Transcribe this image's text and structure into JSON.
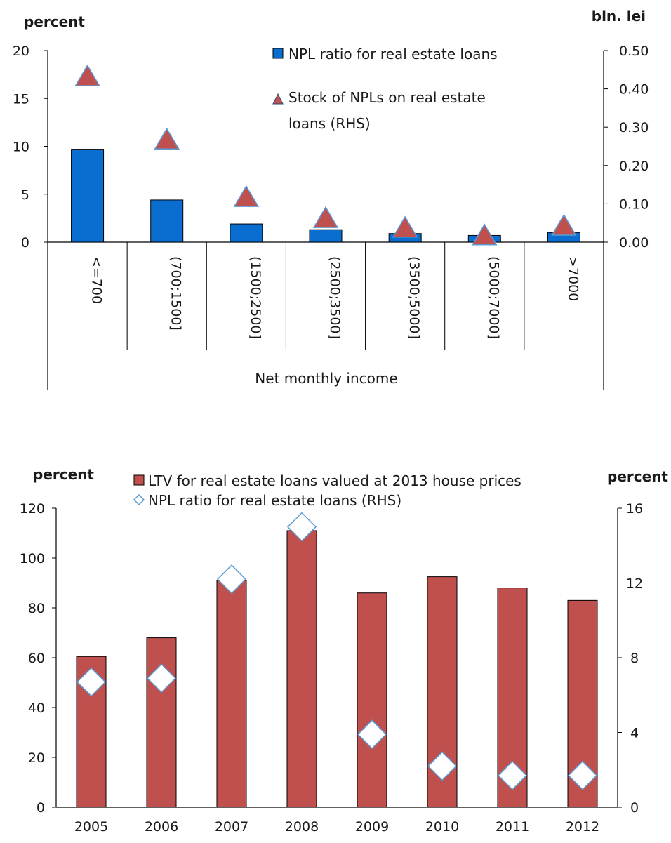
{
  "chart_data": [
    {
      "type": "bar",
      "left_axis_label": "percent",
      "right_axis_label": "bln. lei",
      "xlabel": "Net monthly income",
      "categories": [
        "<=700",
        "(700;1500]",
        "(1500;2500]",
        "(2500;3500]",
        "(3500;5000]",
        "(5000;7000]",
        ">7000"
      ],
      "left_ticks": [
        "0",
        "5",
        "10",
        "15",
        "20"
      ],
      "right_ticks": [
        "0.00",
        "0.10",
        "0.20",
        "0.30",
        "0.40",
        "0.50"
      ],
      "ylim": [
        0,
        20
      ],
      "y2lim": [
        0,
        0.5
      ],
      "series": [
        {
          "name": "NPL ratio for real estate loans",
          "kind": "bar",
          "axis": "left",
          "color": "#0a6ed1",
          "values": [
            9.7,
            4.4,
            1.9,
            1.3,
            0.9,
            0.7,
            1.0
          ]
        },
        {
          "name": "Stock of NPLs on real estate loans (RHS)",
          "name_lines": [
            "Stock of NPLs on real estate",
            "loans (RHS)"
          ],
          "kind": "triangle",
          "axis": "right",
          "color": "#c0504d",
          "values": [
            0.43,
            0.265,
            0.115,
            0.06,
            0.035,
            0.015,
            0.04
          ]
        }
      ]
    },
    {
      "type": "bar",
      "left_axis_label": "percent",
      "right_axis_label": "percent",
      "categories": [
        "2005",
        "2006",
        "2007",
        "2008",
        "2009",
        "2010",
        "2011",
        "2012"
      ],
      "left_ticks": [
        "0",
        "20",
        "40",
        "60",
        "80",
        "100",
        "120"
      ],
      "right_ticks": [
        "0",
        "4",
        "8",
        "12",
        "16"
      ],
      "ylim": [
        0,
        120
      ],
      "y2lim": [
        0,
        16
      ],
      "series": [
        {
          "name": "LTV for real estate loans valued at 2013 house prices",
          "kind": "bar",
          "axis": "left",
          "color": "#c0504d",
          "values": [
            60.5,
            68,
            91,
            111,
            86,
            92.5,
            88,
            83
          ]
        },
        {
          "name": "NPL ratio for real estate loans (RHS)",
          "kind": "diamond",
          "axis": "right",
          "color": "#5b9bd5",
          "values": [
            6.7,
            6.9,
            12.2,
            15,
            3.9,
            2.2,
            1.7,
            1.7
          ]
        }
      ]
    }
  ]
}
